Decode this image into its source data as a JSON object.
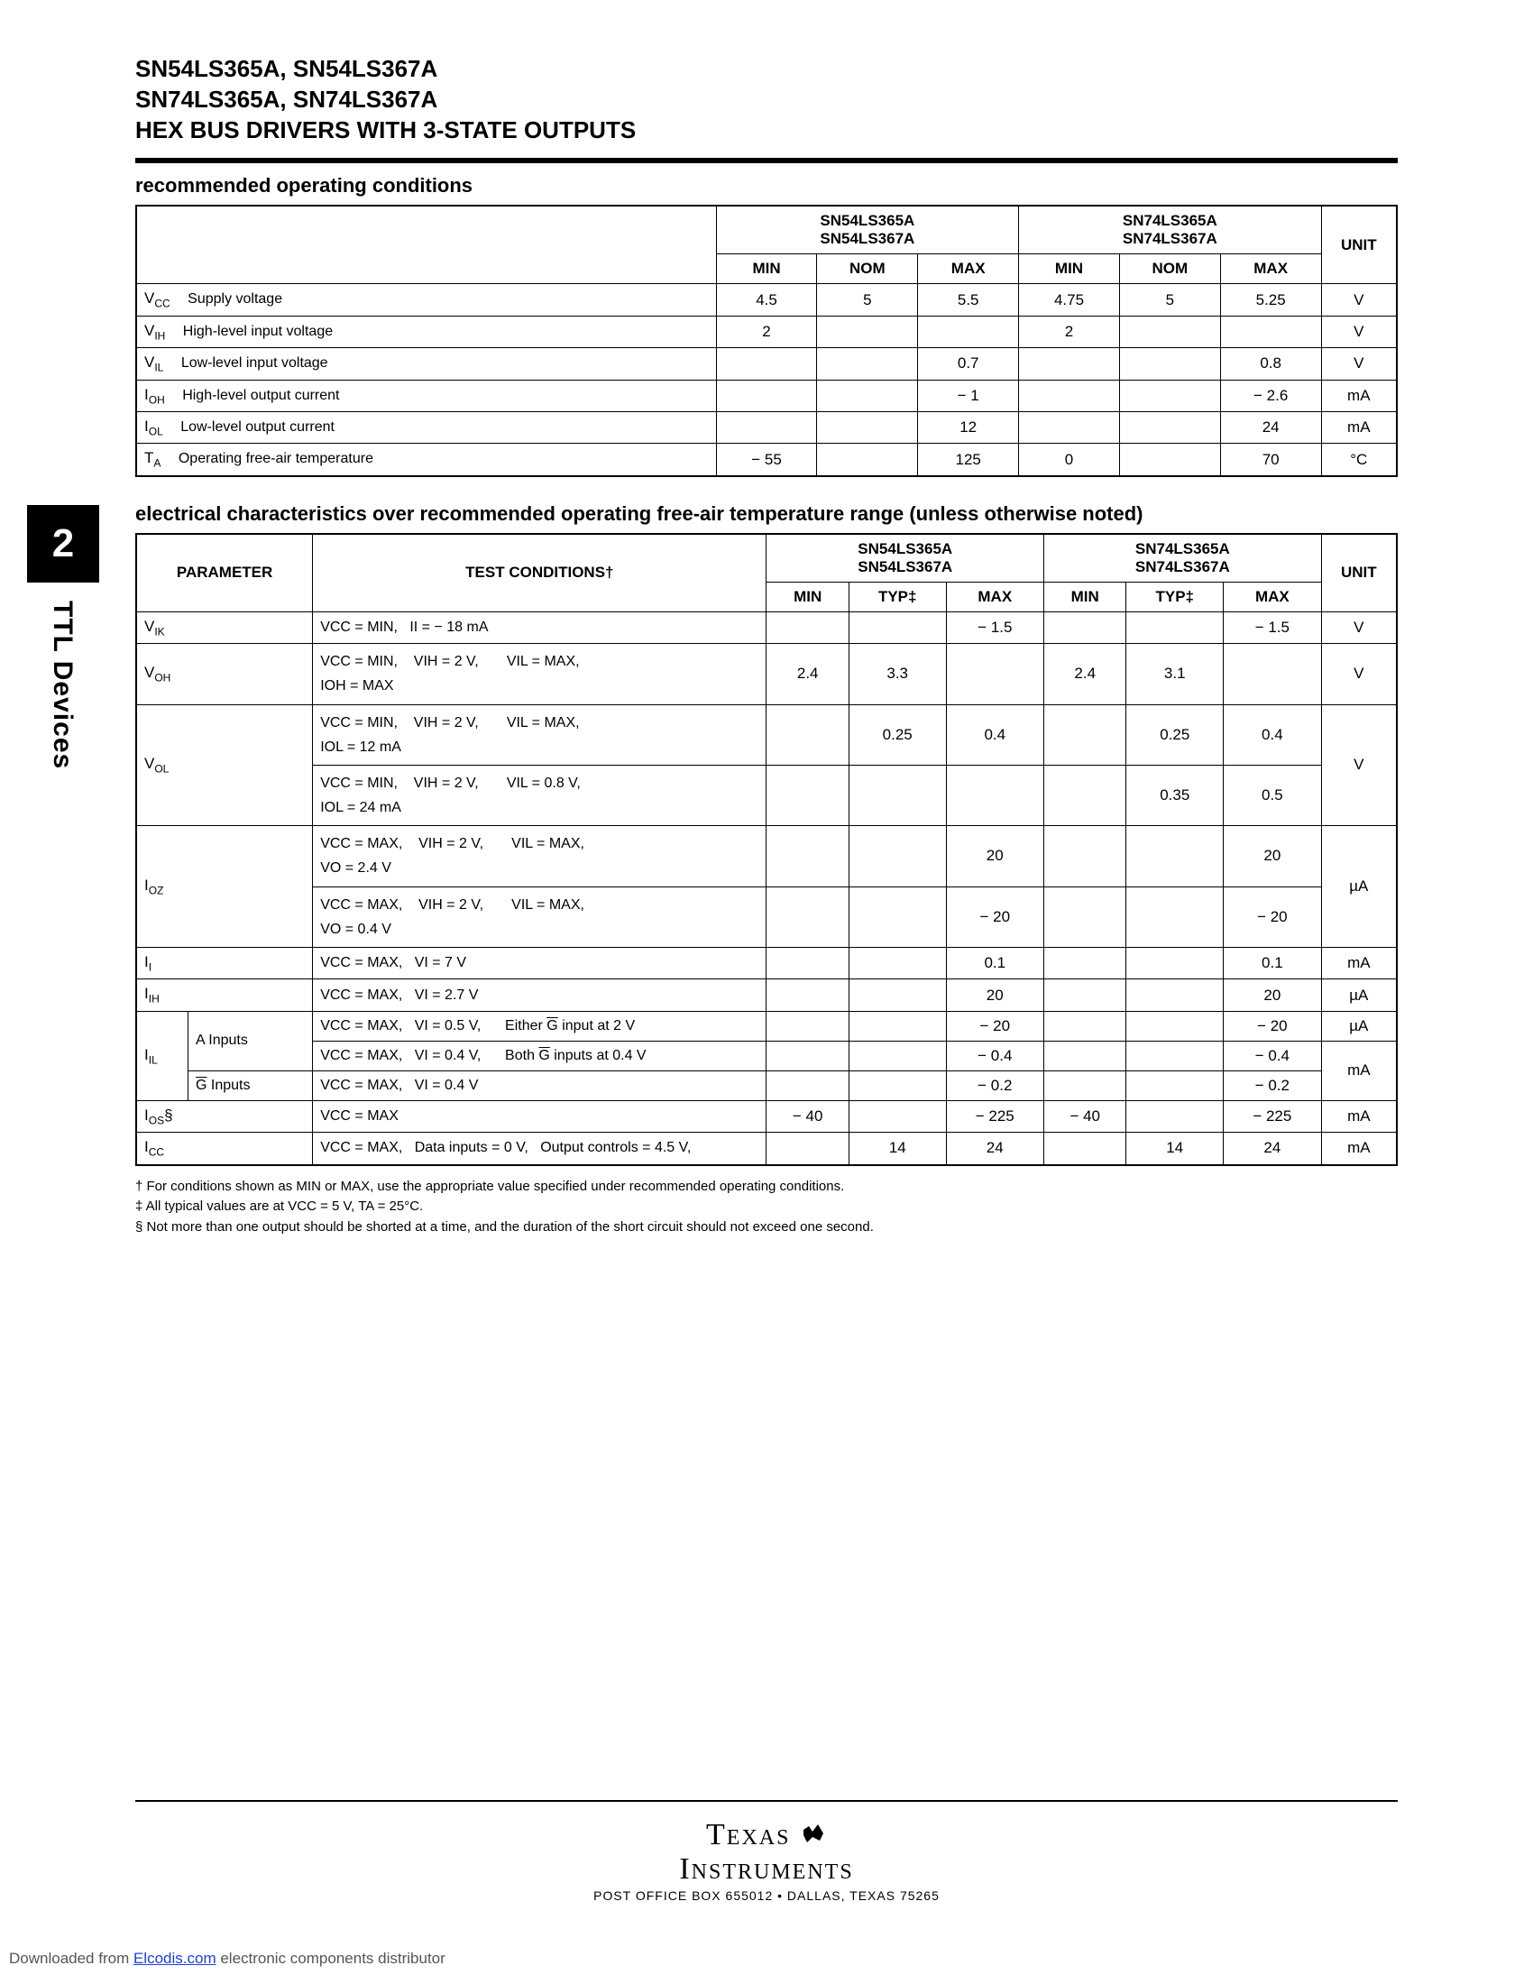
{
  "header": {
    "line1": "SN54LS365A, SN54LS367A",
    "line2": "SN74LS365A, SN74LS367A",
    "line3": "HEX BUS DRIVERS WITH 3-STATE OUTPUTS"
  },
  "sideTab": {
    "num": "2",
    "text": "TTL Devices"
  },
  "sections": {
    "roc_title": "recommended operating conditions",
    "ec_title": "electrical characteristics over recommended operating free-air temperature range (unless otherwise noted)"
  },
  "roc": {
    "groupA": "SN54LS365A\nSN54LS367A",
    "groupB": "SN74LS365A\nSN74LS367A",
    "cols": [
      "MIN",
      "NOM",
      "MAX",
      "MIN",
      "NOM",
      "MAX"
    ],
    "unit_hdr": "UNIT",
    "rows": [
      {
        "sym": "V",
        "sub": "CC",
        "desc": "Supply voltage",
        "a": [
          "4.5",
          "5",
          "5.5"
        ],
        "b": [
          "4.75",
          "5",
          "5.25"
        ],
        "unit": "V"
      },
      {
        "sym": "V",
        "sub": "IH",
        "desc": "High-level input voltage",
        "a": [
          "2",
          "",
          ""
        ],
        "b": [
          "2",
          "",
          ""
        ],
        "unit": "V"
      },
      {
        "sym": "V",
        "sub": "IL",
        "desc": "Low-level input voltage",
        "a": [
          "",
          "",
          "0.7"
        ],
        "b": [
          "",
          "",
          "0.8"
        ],
        "unit": "V"
      },
      {
        "sym": "I",
        "sub": "OH",
        "desc": "High-level output current",
        "a": [
          "",
          "",
          "− 1"
        ],
        "b": [
          "",
          "",
          "− 2.6"
        ],
        "unit": "mA"
      },
      {
        "sym": "I",
        "sub": "OL",
        "desc": "Low-level output current",
        "a": [
          "",
          "",
          "12"
        ],
        "b": [
          "",
          "",
          "24"
        ],
        "unit": "mA"
      },
      {
        "sym": "T",
        "sub": "A",
        "desc": "Operating free-air temperature",
        "a": [
          "− 55",
          "",
          "125"
        ],
        "b": [
          "0",
          "",
          "70"
        ],
        "unit": "°C"
      }
    ]
  },
  "ec": {
    "hdr_param": "PARAMETER",
    "hdr_cond": "TEST CONDITIONS†",
    "groupA": "SN54LS365A\nSN54LS367A",
    "groupB": "SN74LS365A\nSN74LS367A",
    "cols": [
      "MIN",
      "TYP‡",
      "MAX",
      "MIN",
      "TYP‡",
      "MAX"
    ],
    "unit_hdr": "UNIT"
  },
  "ec_rows": {
    "vik": {
      "p": "V",
      "ps": "IK",
      "c1": "VCC = MIN,",
      "c2": "II = − 18 mA",
      "a": [
        "",
        "",
        "− 1.5"
      ],
      "b": [
        "",
        "",
        "− 1.5"
      ],
      "u": "V"
    },
    "voh": {
      "p": "V",
      "ps": "OH",
      "c1": "VCC = MIN,",
      "c2": "VIH = 2 V,",
      "c3": "VIL = MAX,",
      "c4": "IOH = MAX",
      "a": [
        "2.4",
        "3.3",
        ""
      ],
      "b": [
        "2.4",
        "3.1",
        ""
      ],
      "u": "V"
    },
    "vol1": {
      "c1": "VCC = MIN,",
      "c2": "VIH = 2 V,",
      "c3": "VIL = MAX,",
      "c4": "IOL = 12 mA",
      "a": [
        "",
        "0.25",
        "0.4"
      ],
      "b": [
        "",
        "0.25",
        "0.4"
      ]
    },
    "vol2": {
      "p": "V",
      "ps": "OL",
      "c1": "VCC = MIN,",
      "c2": "VIH = 2 V,",
      "c3": "VIL = 0.8 V,",
      "c4": "IOL = 24 mA",
      "a": [
        "",
        "",
        ""
      ],
      "b": [
        "",
        "0.35",
        "0.5"
      ],
      "u": "V"
    },
    "ioz1": {
      "c1": "VCC = MAX,",
      "c2": "VIH = 2 V,",
      "c3": "VIL = MAX,",
      "c4": "VO = 2.4 V",
      "a": [
        "",
        "",
        "20"
      ],
      "b": [
        "",
        "",
        "20"
      ]
    },
    "ioz2": {
      "p": "I",
      "ps": "OZ",
      "c1": "VCC = MAX,",
      "c2": "VIH = 2 V,",
      "c3": "VIL = MAX,",
      "c4": "VO = 0.4 V",
      "a": [
        "",
        "",
        "− 20"
      ],
      "b": [
        "",
        "",
        "− 20"
      ],
      "u": "µA"
    },
    "ii": {
      "p": "I",
      "ps": "I",
      "c1": "VCC = MAX,",
      "c2": "VI = 7 V",
      "a": [
        "",
        "",
        "0.1"
      ],
      "b": [
        "",
        "",
        "0.1"
      ],
      "u": "mA"
    },
    "iih": {
      "p": "I",
      "ps": "IH",
      "c1": "VCC = MAX,",
      "c2": "VI = 2.7 V",
      "a": [
        "",
        "",
        "20"
      ],
      "b": [
        "",
        "",
        "20"
      ],
      "u": "µA"
    },
    "iil1": {
      "lbl": "A Inputs",
      "c1": "VCC = MAX,",
      "c2": "VI = 0.5 V,",
      "c3": "Either G input at 2 V",
      "a": [
        "",
        "",
        "− 20"
      ],
      "b": [
        "",
        "",
        "− 20"
      ],
      "u": "µA"
    },
    "iil2": {
      "p": "I",
      "ps": "IL",
      "c1": "VCC = MAX,",
      "c2": "VI = 0.4 V,",
      "c3": "Both G inputs at 0.4 V",
      "a": [
        "",
        "",
        "− 0.4"
      ],
      "b": [
        "",
        "",
        "− 0.4"
      ],
      "u": "mA"
    },
    "iil3": {
      "lbl": "G Inputs",
      "c1": "VCC = MAX,",
      "c2": "VI = 0.4 V",
      "a": [
        "",
        "",
        "− 0.2"
      ],
      "b": [
        "",
        "",
        "− 0.2"
      ]
    },
    "ios": {
      "p": "I",
      "ps": "OS",
      "sfx": "§",
      "c1": "VCC = MAX",
      "a": [
        "− 40",
        "",
        "− 225"
      ],
      "b": [
        "− 40",
        "",
        "− 225"
      ],
      "u": "mA"
    },
    "icc": {
      "p": "I",
      "ps": "CC",
      "c1": "VCC = MAX,",
      "c2": "Data inputs = 0 V,",
      "c3": "Output controls = 4.5 V,",
      "a": [
        "",
        "14",
        "24"
      ],
      "b": [
        "",
        "14",
        "24"
      ],
      "u": "mA"
    }
  },
  "footnotes": {
    "f1": "† For conditions shown as MIN or MAX, use the appropriate value specified under recommended operating conditions.",
    "f2": "‡ All typical values are at VCC = 5 V, TA = 25°C.",
    "f3": "§ Not more than one output should be shorted at a time, and the duration of the short circuit should not exceed one second."
  },
  "footer": {
    "brand1": "Texas",
    "brand2": "Instruments",
    "addr": "POST OFFICE BOX 655012 • DALLAS, TEXAS 75265"
  },
  "download": {
    "pre": "Downloaded from ",
    "link": "Elcodis.com",
    "post": " electronic components distributor"
  }
}
